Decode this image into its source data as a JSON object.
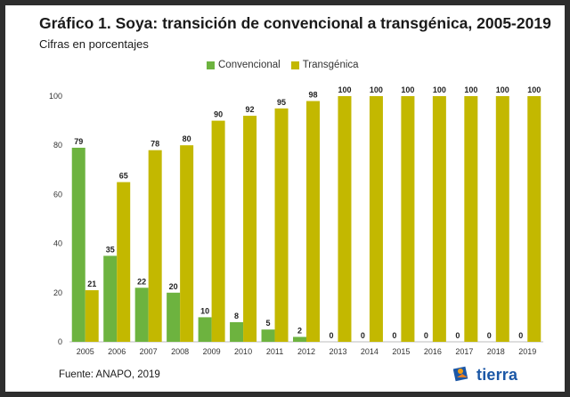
{
  "header": {
    "title": "Gráfico 1. Soya: transición de convencional a transgénica, 2005-2019",
    "subtitle": "Cifras en porcentajes"
  },
  "footer": {
    "source": "Fuente: ANAPO, 2019",
    "brand": "tierra"
  },
  "colors": {
    "convencional": "#6db33f",
    "transgenica": "#c3b800"
  },
  "chart_data": {
    "type": "bar",
    "title": "Gráfico 1. Soya: transición de convencional a transgénica, 2005-2019",
    "subtitle": "Cifras en porcentajes",
    "xlabel": "",
    "ylabel": "",
    "categories": [
      "2005",
      "2006",
      "2007",
      "2008",
      "2009",
      "2010",
      "2011",
      "2012",
      "2013",
      "2014",
      "2015",
      "2016",
      "2017",
      "2018",
      "2019"
    ],
    "series": [
      {
        "name": "Convencional",
        "values": [
          79,
          35,
          22,
          20,
          10,
          8,
          5,
          2,
          0,
          0,
          0,
          0,
          0,
          0,
          0
        ]
      },
      {
        "name": "Transgénica",
        "values": [
          21,
          65,
          78,
          80,
          90,
          92,
          95,
          98,
          100,
          100,
          100,
          100,
          100,
          100,
          100
        ]
      }
    ],
    "ylim": [
      0,
      100
    ],
    "yticks": [
      0,
      20,
      40,
      60,
      80,
      100
    ],
    "grid": false,
    "legend": "top-center",
    "data_labels": true
  }
}
